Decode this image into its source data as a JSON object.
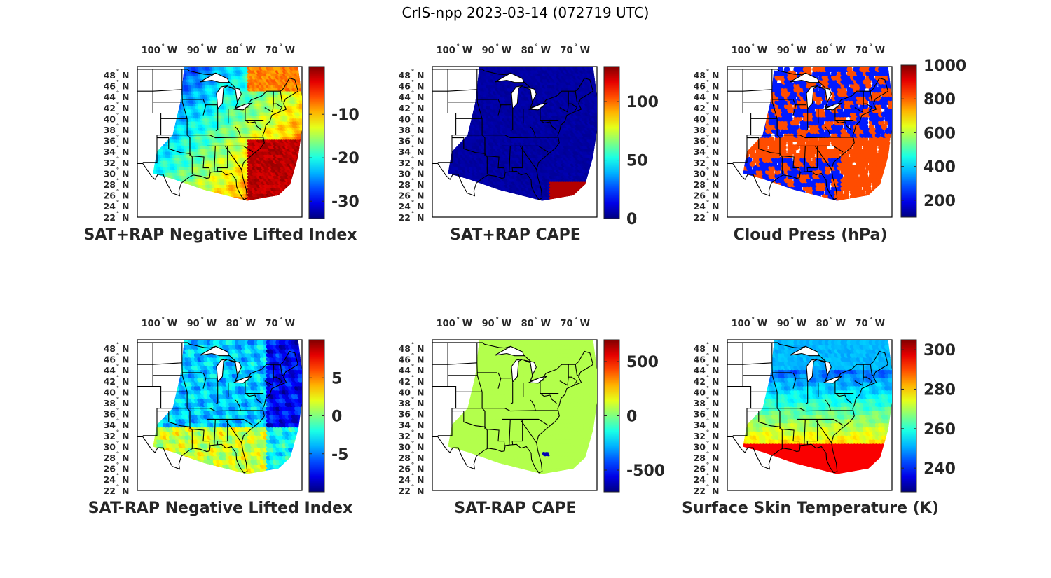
{
  "title": "CrIS-npp 2023-03-14 (072719 UTC)",
  "lon_ticks": [
    {
      "value": "100",
      "unit": "W"
    },
    {
      "value": "90",
      "unit": "W"
    },
    {
      "value": "80",
      "unit": "W"
    },
    {
      "value": "70",
      "unit": "W"
    }
  ],
  "lat_ticks": [
    {
      "value": "48",
      "unit": "N"
    },
    {
      "value": "46",
      "unit": "N"
    },
    {
      "value": "44",
      "unit": "N"
    },
    {
      "value": "42",
      "unit": "N"
    },
    {
      "value": "40",
      "unit": "N"
    },
    {
      "value": "38",
      "unit": "N"
    },
    {
      "value": "36",
      "unit": "N"
    },
    {
      "value": "34",
      "unit": "N"
    },
    {
      "value": "32",
      "unit": "N"
    },
    {
      "value": "30",
      "unit": "N"
    },
    {
      "value": "28",
      "unit": "N"
    },
    {
      "value": "26",
      "unit": "N"
    },
    {
      "value": "24",
      "unit": "N"
    },
    {
      "value": "22",
      "unit": "N"
    }
  ],
  "colormap": "jet",
  "panels": [
    {
      "title": "SAT+RAP Negative Lifted Index",
      "colorbar": {
        "min": -34,
        "max": 1,
        "ticks": [
          -30,
          -20,
          -10
        ]
      },
      "pattern": "li"
    },
    {
      "title": "SAT+RAP CAPE",
      "colorbar": {
        "min": 0,
        "max": 130,
        "ticks": [
          0,
          50,
          100
        ]
      },
      "pattern": "cape"
    },
    {
      "title": "Cloud Press (hPa)",
      "colorbar": {
        "min": 100,
        "max": 1000,
        "ticks": [
          200,
          400,
          600,
          800,
          1000
        ]
      },
      "pattern": "cloud"
    },
    {
      "title": "SAT-RAP Negative Lifted Index",
      "colorbar": {
        "min": -10,
        "max": 10,
        "ticks": [
          -5,
          0,
          5
        ]
      },
      "pattern": "dli"
    },
    {
      "title": "SAT-RAP CAPE",
      "colorbar": {
        "min": -700,
        "max": 700,
        "ticks": [
          -500,
          0,
          500
        ]
      },
      "pattern": "dcape"
    },
    {
      "title": "Surface Skin Temperature (K)",
      "colorbar": {
        "min": 228,
        "max": 305,
        "ticks": [
          240,
          260,
          280,
          300
        ]
      },
      "pattern": "skin"
    }
  ]
}
